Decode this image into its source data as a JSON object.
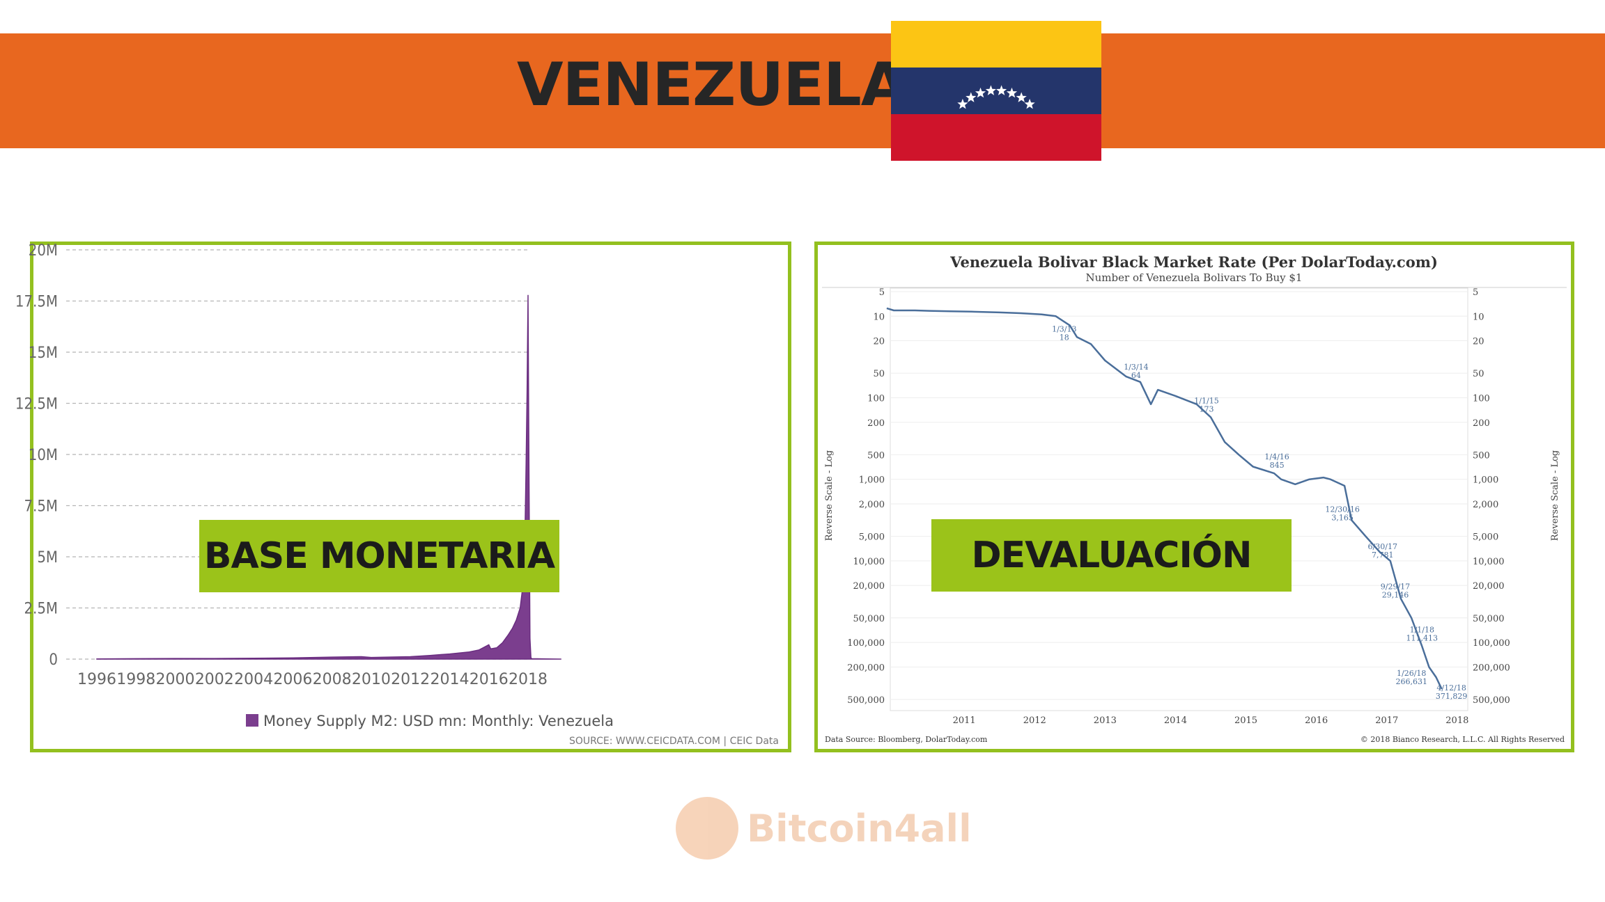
{
  "header": {
    "title": "VENEZUELA",
    "flag": {
      "colors": {
        "top": "#fcc514",
        "middle": "#24356b",
        "bottom": "#cf142b",
        "star": "#ffffff"
      },
      "star_count": 8
    },
    "banner_color": "#e8671f"
  },
  "left_panel": {
    "label": "BASE MONETARIA",
    "chart_data": {
      "type": "area",
      "series_name": "Money Supply M2: USD mn: Monthly: Venezuela",
      "color": "#7b3e8e",
      "x": [
        1996,
        1998,
        2000,
        2002,
        2004,
        2006,
        2008,
        2009.5,
        2010,
        2012,
        2013,
        2014,
        2015,
        2015.5,
        2016,
        2016.1,
        2016.4,
        2016.7,
        2017,
        2017.2,
        2017.4,
        2017.6,
        2017.7,
        2017.8,
        2017.85,
        2017.9,
        2017.95,
        2018.0,
        2018.05,
        2018.1,
        2018.15,
        2018.2,
        2019,
        2019.7
      ],
      "y_millions": [
        0.01,
        0.02,
        0.03,
        0.03,
        0.04,
        0.06,
        0.1,
        0.12,
        0.08,
        0.12,
        0.18,
        0.25,
        0.35,
        0.45,
        0.7,
        0.5,
        0.55,
        0.8,
        1.2,
        1.5,
        1.9,
        2.5,
        3.3,
        4.5,
        6.5,
        9.5,
        13.0,
        17.8,
        9.0,
        1.0,
        0.05,
        0.02,
        0.01,
        0.0
      ],
      "ylim": [
        0,
        20
      ],
      "y_tick_labels": [
        "0",
        "2.5M",
        "5M",
        "7.5M",
        "10M",
        "12.5M",
        "15M",
        "17.5M",
        "20M"
      ],
      "x_tick_labels": [
        "1996",
        "1998",
        "2000",
        "2002",
        "2004",
        "2006",
        "2008",
        "2010",
        "2012",
        "2014",
        "2016",
        "2018"
      ],
      "legend": "Money Supply M2: USD mn: Monthly: Venezuela",
      "source": "SOURCE: WWW.CEICDATA.COM | CEIC Data",
      "grid": true
    }
  },
  "right_panel": {
    "label": "DEVALUACIÓN",
    "chart_data": {
      "type": "line",
      "title": "Venezuela Bolivar Black Market Rate (Per DolarToday.com)",
      "subtitle": "Number of Venezuela Bolivars To Buy $1",
      "ylabel": "Reverse Scale - Log",
      "color": "#4a6e9a",
      "y_tick_labels": [
        "5",
        "10",
        "20",
        "50",
        "100",
        "200",
        "500",
        "1,000",
        "2,000",
        "5,000",
        "10,000",
        "20,000",
        "50,000",
        "100,000",
        "200,000",
        "500,000"
      ],
      "x_tick_labels": [
        "2011",
        "2012",
        "2013",
        "2014",
        "2015",
        "2016",
        "2017",
        "2018"
      ],
      "x": [
        2010.4,
        2010.5,
        2010.8,
        2011.0,
        2011.3,
        2011.6,
        2012.0,
        2012.3,
        2012.6,
        2012.8,
        2013.0,
        2013.1,
        2013.3,
        2013.5,
        2013.8,
        2014.0,
        2014.15,
        2014.25,
        2014.5,
        2014.8,
        2015.0,
        2015.2,
        2015.4,
        2015.6,
        2015.9,
        2016.0,
        2016.2,
        2016.4,
        2016.6,
        2016.7,
        2016.9,
        2017.0,
        2017.2,
        2017.4,
        2017.55,
        2017.7,
        2017.85,
        2018.0,
        2018.1,
        2018.2,
        2018.28
      ],
      "y": [
        8,
        8.5,
        8.5,
        8.6,
        8.7,
        8.8,
        9,
        9.2,
        9.5,
        10,
        13,
        18,
        22,
        35,
        55,
        64,
        120,
        80,
        95,
        120,
        173,
        350,
        500,
        700,
        845,
        1000,
        1150,
        1000,
        950,
        1000,
        1200,
        3165,
        5000,
        7781,
        10000,
        29146,
        50000,
        111413,
        200000,
        266631,
        371829
      ],
      "annotations": [
        {
          "date": "1/3/13",
          "value": "18"
        },
        {
          "date": "1/3/14",
          "value": "64"
        },
        {
          "date": "1/1/15",
          "value": "173"
        },
        {
          "date": "1/4/16",
          "value": "845"
        },
        {
          "date": "12/30/16",
          "value": "3,165"
        },
        {
          "date": "6/30/17",
          "value": "7,781"
        },
        {
          "date": "9/29/17",
          "value": "29,146"
        },
        {
          "date": "1/1/18",
          "value": "111,413"
        },
        {
          "date": "1/26/18",
          "value": "266,631"
        },
        {
          "date": "4/12/18",
          "value": "371,829"
        }
      ],
      "source": "Data Source: Bloomberg, DolarToday.com",
      "copyright": "© 2018 Bianco Research, L.L.C. All Rights Reserved"
    }
  },
  "watermark": {
    "text": "Bitcoin4all"
  }
}
